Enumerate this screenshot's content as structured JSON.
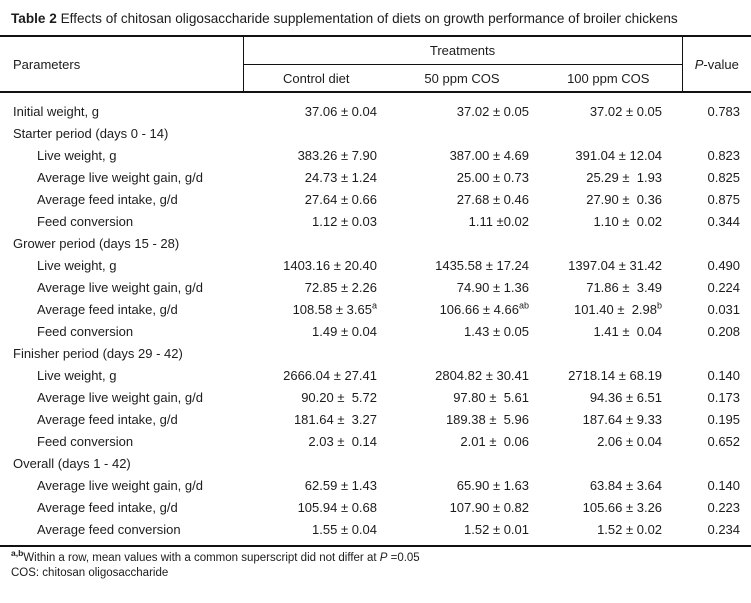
{
  "title": {
    "label": "Table 2",
    "text": " Effects of chitosan oligosaccharide supplementation of diets on growth performance of broiler chickens"
  },
  "header": {
    "parameters": "Parameters",
    "treatments": "Treatments",
    "columns": [
      "Control diet",
      "50 ppm COS",
      "100 ppm COS"
    ],
    "pvalue_italic": "P",
    "pvalue_rest": "-value"
  },
  "rows": [
    {
      "kind": "data",
      "indent": 1,
      "label": "Initial weight, g",
      "v": [
        {
          "t": "37.06 ± 0.04",
          "sup": ""
        },
        {
          "t": "37.02 ± 0.05",
          "sup": ""
        },
        {
          "t": "37.02 ± 0.05",
          "sup": ""
        }
      ],
      "p": "0.783"
    },
    {
      "kind": "section",
      "label": "Starter period (days 0 - 14)"
    },
    {
      "kind": "data",
      "indent": 2,
      "label": "Live weight, g",
      "v": [
        {
          "t": "383.26 ± 7.90",
          "sup": ""
        },
        {
          "t": "387.00 ± 4.69",
          "sup": ""
        },
        {
          "t": "391.04 ± 12.04",
          "sup": ""
        }
      ],
      "p": "0.823"
    },
    {
      "kind": "data",
      "indent": 2,
      "label": "Average live weight gain, g/d",
      "v": [
        {
          "t": "24.73 ± 1.24",
          "sup": ""
        },
        {
          "t": "25.00 ± 0.73",
          "sup": ""
        },
        {
          "t": "25.29 ±  1.93",
          "sup": ""
        }
      ],
      "p": "0.825"
    },
    {
      "kind": "data",
      "indent": 2,
      "label": "Average feed intake, g/d",
      "v": [
        {
          "t": "27.64 ± 0.66",
          "sup": ""
        },
        {
          "t": "27.68 ± 0.46",
          "sup": ""
        },
        {
          "t": "27.90 ±  0.36",
          "sup": ""
        }
      ],
      "p": "0.875"
    },
    {
      "kind": "data",
      "indent": 2,
      "label": "Feed conversion",
      "v": [
        {
          "t": "1.12 ± 0.03",
          "sup": ""
        },
        {
          "t": "1.11 ±0.02",
          "sup": ""
        },
        {
          "t": "1.10 ±  0.02",
          "sup": ""
        }
      ],
      "p": "0.344"
    },
    {
      "kind": "section",
      "label": "Grower period (days 15 - 28)"
    },
    {
      "kind": "data",
      "indent": 2,
      "label": "Live weight, g",
      "v": [
        {
          "t": "1403.16 ± 20.40",
          "sup": ""
        },
        {
          "t": "1435.58 ± 17.24",
          "sup": ""
        },
        {
          "t": "1397.04 ± 31.42",
          "sup": ""
        }
      ],
      "p": "0.490"
    },
    {
      "kind": "data",
      "indent": 2,
      "label": "Average live weight gain, g/d",
      "v": [
        {
          "t": "72.85 ± 2.26",
          "sup": ""
        },
        {
          "t": "74.90 ± 1.36",
          "sup": ""
        },
        {
          "t": "71.86 ±  3.49",
          "sup": ""
        }
      ],
      "p": "0.224"
    },
    {
      "kind": "data",
      "indent": 2,
      "label": "Average feed intake, g/d",
      "v": [
        {
          "t": "108.58 ± 3.65",
          "sup": "a"
        },
        {
          "t": "106.66 ± 4.66",
          "sup": "ab"
        },
        {
          "t": "101.40 ±  2.98",
          "sup": "b"
        }
      ],
      "p": "0.031"
    },
    {
      "kind": "data",
      "indent": 2,
      "label": "Feed conversion",
      "v": [
        {
          "t": "1.49 ± 0.04",
          "sup": ""
        },
        {
          "t": "1.43 ± 0.05",
          "sup": ""
        },
        {
          "t": "1.41 ±  0.04",
          "sup": ""
        }
      ],
      "p": "0.208"
    },
    {
      "kind": "section",
      "label": "Finisher period (days 29 - 42)"
    },
    {
      "kind": "data",
      "indent": 2,
      "label": "Live weight, g",
      "v": [
        {
          "t": "2666.04 ± 27.41",
          "sup": ""
        },
        {
          "t": "2804.82 ± 30.41",
          "sup": ""
        },
        {
          "t": "2718.14 ± 68.19",
          "sup": ""
        }
      ],
      "p": "0.140"
    },
    {
      "kind": "data",
      "indent": 2,
      "label": "Average live weight gain, g/d",
      "v": [
        {
          "t": "90.20 ±  5.72",
          "sup": ""
        },
        {
          "t": "97.80 ±  5.61",
          "sup": ""
        },
        {
          "t": "94.36 ± 6.51",
          "sup": ""
        }
      ],
      "p": "0.173"
    },
    {
      "kind": "data",
      "indent": 2,
      "label": "Average feed intake, g/d",
      "v": [
        {
          "t": "181.64 ±  3.27",
          "sup": ""
        },
        {
          "t": "189.38 ±  5.96",
          "sup": ""
        },
        {
          "t": "187.64 ± 9.33",
          "sup": ""
        }
      ],
      "p": "0.195"
    },
    {
      "kind": "data",
      "indent": 2,
      "label": "Feed conversion",
      "v": [
        {
          "t": "2.03 ±  0.14",
          "sup": ""
        },
        {
          "t": "2.01 ±  0.06",
          "sup": ""
        },
        {
          "t": "2.06 ± 0.04",
          "sup": ""
        }
      ],
      "p": "0.652"
    },
    {
      "kind": "section",
      "label": "Overall (days 1 - 42)"
    },
    {
      "kind": "data",
      "indent": 2,
      "label": "Average live weight gain, g/d",
      "v": [
        {
          "t": "62.59 ± 1.43",
          "sup": ""
        },
        {
          "t": "65.90 ± 1.63",
          "sup": ""
        },
        {
          "t": "63.84 ± 3.64",
          "sup": ""
        }
      ],
      "p": "0.140"
    },
    {
      "kind": "data",
      "indent": 2,
      "label": "Average feed intake, g/d",
      "v": [
        {
          "t": "105.94 ± 0.68",
          "sup": ""
        },
        {
          "t": "107.90 ± 0.82",
          "sup": ""
        },
        {
          "t": "105.66 ± 3.26",
          "sup": ""
        }
      ],
      "p": "0.223"
    },
    {
      "kind": "data",
      "indent": 2,
      "label": "Average feed conversion",
      "v": [
        {
          "t": "1.55 ± 0.04",
          "sup": ""
        },
        {
          "t": "1.52 ± 0.01",
          "sup": ""
        },
        {
          "t": "1.52 ± 0.02",
          "sup": ""
        }
      ],
      "p": "0.234"
    }
  ],
  "footnotes": {
    "sup": "a,b",
    "line1": "Within a row, mean values with a common superscript did not differ at ",
    "p_italic": "P",
    "line1_end": " =0.05",
    "line2": "COS: chitosan oligosaccharide"
  },
  "colors": {
    "text": "#1c1c1c",
    "rule": "#111111",
    "background": "#ffffff"
  }
}
